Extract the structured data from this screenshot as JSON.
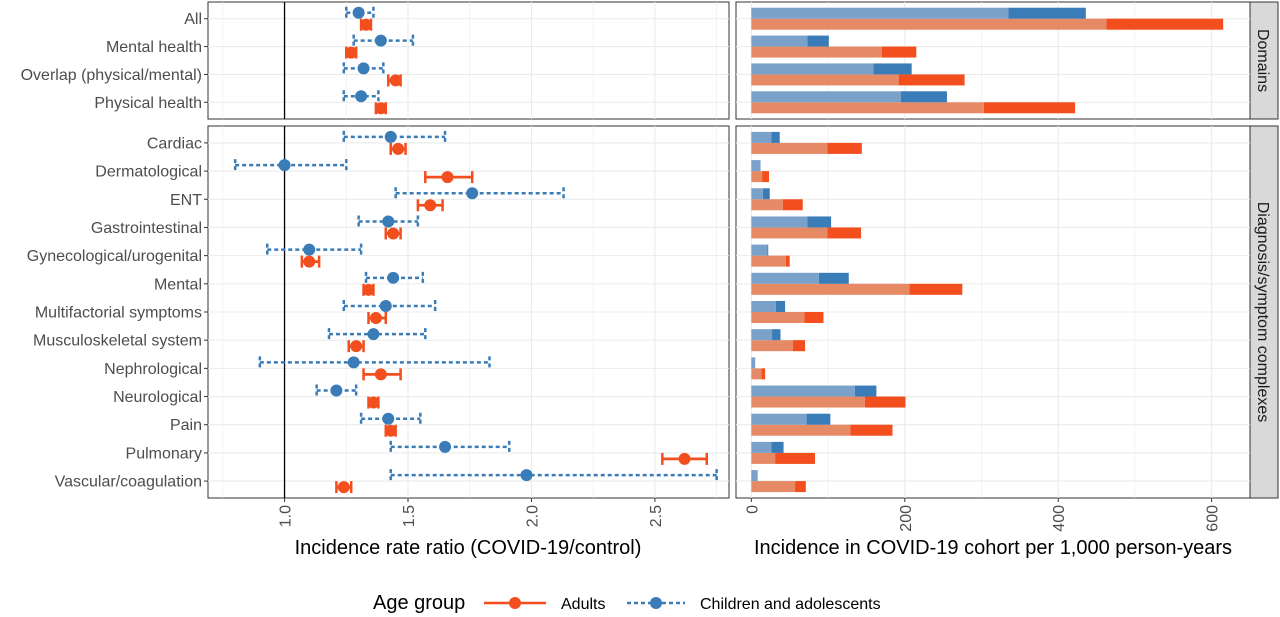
{
  "chart_data": {
    "colors": {
      "adults": "#f24e1e",
      "children": "#3a7cb8",
      "adults_light": "#e68a66",
      "children_light": "#7aa1c9",
      "grid": "#ebebeb",
      "strip": "#d9d9d9"
    },
    "legend": {
      "title": "Age group",
      "position": "bottom",
      "items": [
        {
          "key": "adults",
          "label": "Adults",
          "linetype": "solid"
        },
        {
          "key": "children",
          "label": "Children and adolescents",
          "linetype": "dashed"
        }
      ]
    },
    "facets": [
      {
        "id": "domains",
        "strip": "Domains",
        "categories": [
          "All",
          "Mental health",
          "Overlap (physical/mental)",
          "Physical health"
        ]
      },
      {
        "id": "complexes",
        "strip": "Diagnosis/symptom complexes",
        "categories": [
          "Cardiac",
          "Dermatological",
          "ENT",
          "Gastrointestinal",
          "Gynecological/urogenital",
          "Mental",
          "Multifactorial symptoms",
          "Musculoskeletal system",
          "Nephrological",
          "Neurological",
          "Pain",
          "Pulmonary",
          "Vascular/coagulation"
        ]
      }
    ],
    "irr_panel": {
      "type": "forest",
      "xlabel": "Incidence rate ratio (COVID-19/control)",
      "xlim": [
        0.69,
        2.8
      ],
      "xticks": [
        1.0,
        1.5,
        2.0,
        2.5
      ],
      "xtick_labels": [
        "1.0",
        "1.5",
        "2.0",
        "2.5"
      ],
      "reference_line": 1.0,
      "grid": true,
      "series": [
        {
          "key": "adults",
          "name": "Adults",
          "points": [
            {
              "category": "All",
              "est": 1.33,
              "lo": 1.31,
              "hi": 1.35
            },
            {
              "category": "Mental health",
              "est": 1.27,
              "lo": 1.25,
              "hi": 1.29
            },
            {
              "category": "Overlap (physical/mental)",
              "est": 1.45,
              "lo": 1.42,
              "hi": 1.47
            },
            {
              "category": "Physical health",
              "est": 1.39,
              "lo": 1.37,
              "hi": 1.41
            },
            {
              "category": "Cardiac",
              "est": 1.46,
              "lo": 1.43,
              "hi": 1.49
            },
            {
              "category": "Dermatological",
              "est": 1.66,
              "lo": 1.57,
              "hi": 1.76
            },
            {
              "category": "ENT",
              "est": 1.59,
              "lo": 1.54,
              "hi": 1.64
            },
            {
              "category": "Gastrointestinal",
              "est": 1.44,
              "lo": 1.41,
              "hi": 1.47
            },
            {
              "category": "Gynecological/urogenital",
              "est": 1.1,
              "lo": 1.07,
              "hi": 1.14
            },
            {
              "category": "Mental",
              "est": 1.34,
              "lo": 1.32,
              "hi": 1.36
            },
            {
              "category": "Multifactorial symptoms",
              "est": 1.37,
              "lo": 1.34,
              "hi": 1.41
            },
            {
              "category": "Musculoskeletal system",
              "est": 1.29,
              "lo": 1.26,
              "hi": 1.32
            },
            {
              "category": "Nephrological",
              "est": 1.39,
              "lo": 1.32,
              "hi": 1.47
            },
            {
              "category": "Neurological",
              "est": 1.36,
              "lo": 1.34,
              "hi": 1.38
            },
            {
              "category": "Pain",
              "est": 1.43,
              "lo": 1.41,
              "hi": 1.45
            },
            {
              "category": "Pulmonary",
              "est": 2.62,
              "lo": 2.53,
              "hi": 2.71
            },
            {
              "category": "Vascular/coagulation",
              "est": 1.24,
              "lo": 1.21,
              "hi": 1.27
            }
          ]
        },
        {
          "key": "children",
          "name": "Children and adolescents",
          "points": [
            {
              "category": "All",
              "est": 1.3,
              "lo": 1.25,
              "hi": 1.36
            },
            {
              "category": "Mental health",
              "est": 1.39,
              "lo": 1.28,
              "hi": 1.52
            },
            {
              "category": "Overlap (physical/mental)",
              "est": 1.32,
              "lo": 1.24,
              "hi": 1.4
            },
            {
              "category": "Physical health",
              "est": 1.31,
              "lo": 1.24,
              "hi": 1.38
            },
            {
              "category": "Cardiac",
              "est": 1.43,
              "lo": 1.24,
              "hi": 1.65
            },
            {
              "category": "Dermatological",
              "est": 1.0,
              "lo": 0.8,
              "hi": 1.25
            },
            {
              "category": "ENT",
              "est": 1.76,
              "lo": 1.45,
              "hi": 2.13
            },
            {
              "category": "Gastrointestinal",
              "est": 1.42,
              "lo": 1.3,
              "hi": 1.54
            },
            {
              "category": "Gynecological/urogenital",
              "est": 1.1,
              "lo": 0.93,
              "hi": 1.31
            },
            {
              "category": "Mental",
              "est": 1.44,
              "lo": 1.33,
              "hi": 1.56
            },
            {
              "category": "Multifactorial symptoms",
              "est": 1.41,
              "lo": 1.24,
              "hi": 1.61
            },
            {
              "category": "Musculoskeletal system",
              "est": 1.36,
              "lo": 1.18,
              "hi": 1.57
            },
            {
              "category": "Nephrological",
              "est": 1.28,
              "lo": 0.9,
              "hi": 1.83
            },
            {
              "category": "Neurological",
              "est": 1.21,
              "lo": 1.13,
              "hi": 1.29
            },
            {
              "category": "Pain",
              "est": 1.42,
              "lo": 1.31,
              "hi": 1.55
            },
            {
              "category": "Pulmonary",
              "est": 1.65,
              "lo": 1.43,
              "hi": 1.91
            },
            {
              "category": "Vascular/coagulation",
              "est": 1.98,
              "lo": 1.43,
              "hi": 2.75
            }
          ]
        }
      ]
    },
    "incidence_panel": {
      "type": "bar",
      "orientation": "horizontal",
      "xlabel": "Incidence in COVID-19 cohort per 1,000 person-years",
      "xlim": [
        -20,
        650
      ],
      "xticks": [
        0,
        200,
        400,
        600
      ],
      "xtick_labels": [
        "0",
        "200",
        "400",
        "600"
      ],
      "grid": true,
      "bar_parts": [
        "control-equivalent (light)",
        "excess in COVID-19 cohort (dark)"
      ],
      "series": [
        {
          "key": "adults",
          "name": "Adults",
          "bars": [
            {
              "category": "All",
              "light": 463,
              "total": 615
            },
            {
              "category": "Mental health",
              "light": 170,
              "total": 215
            },
            {
              "category": "Overlap (physical/mental)",
              "light": 192,
              "total": 278
            },
            {
              "category": "Physical health",
              "light": 303,
              "total": 422
            },
            {
              "category": "Cardiac",
              "light": 99,
              "total": 144
            },
            {
              "category": "Dermatological",
              "light": 14,
              "total": 23
            },
            {
              "category": "ENT",
              "light": 41,
              "total": 67
            },
            {
              "category": "Gastrointestinal",
              "light": 99,
              "total": 143
            },
            {
              "category": "Gynecological/urogenital",
              "light": 45,
              "total": 50
            },
            {
              "category": "Mental",
              "light": 206,
              "total": 275
            },
            {
              "category": "Multifactorial symptoms",
              "light": 69,
              "total": 94
            },
            {
              "category": "Musculoskeletal system",
              "light": 54,
              "total": 70
            },
            {
              "category": "Nephrological",
              "light": 13,
              "total": 18
            },
            {
              "category": "Neurological",
              "light": 148,
              "total": 201
            },
            {
              "category": "Pain",
              "light": 129,
              "total": 184
            },
            {
              "category": "Pulmonary",
              "light": 31,
              "total": 83
            },
            {
              "category": "Vascular/coagulation",
              "light": 57,
              "total": 71
            }
          ]
        },
        {
          "key": "children",
          "name": "Children and adolescents",
          "bars": [
            {
              "category": "All",
              "light": 335,
              "total": 436
            },
            {
              "category": "Mental health",
              "light": 73,
              "total": 101
            },
            {
              "category": "Overlap (physical/mental)",
              "light": 159,
              "total": 209
            },
            {
              "category": "Physical health",
              "light": 195,
              "total": 255
            },
            {
              "category": "Cardiac",
              "light": 26,
              "total": 37
            },
            {
              "category": "Dermatological",
              "light": 12,
              "total": 12
            },
            {
              "category": "ENT",
              "light": 15,
              "total": 24
            },
            {
              "category": "Gastrointestinal",
              "light": 73,
              "total": 104
            },
            {
              "category": "Gynecological/urogenital",
              "light": 21,
              "total": 22
            },
            {
              "category": "Mental",
              "light": 88,
              "total": 127
            },
            {
              "category": "Multifactorial symptoms",
              "light": 32,
              "total": 44
            },
            {
              "category": "Musculoskeletal system",
              "light": 27,
              "total": 38
            },
            {
              "category": "Nephrological",
              "light": 5,
              "total": 5
            },
            {
              "category": "Neurological",
              "light": 135,
              "total": 163
            },
            {
              "category": "Pain",
              "light": 72,
              "total": 103
            },
            {
              "category": "Pulmonary",
              "light": 26,
              "total": 42
            },
            {
              "category": "Vascular/coagulation",
              "light": 7,
              "total": 8
            }
          ]
        }
      ]
    }
  }
}
